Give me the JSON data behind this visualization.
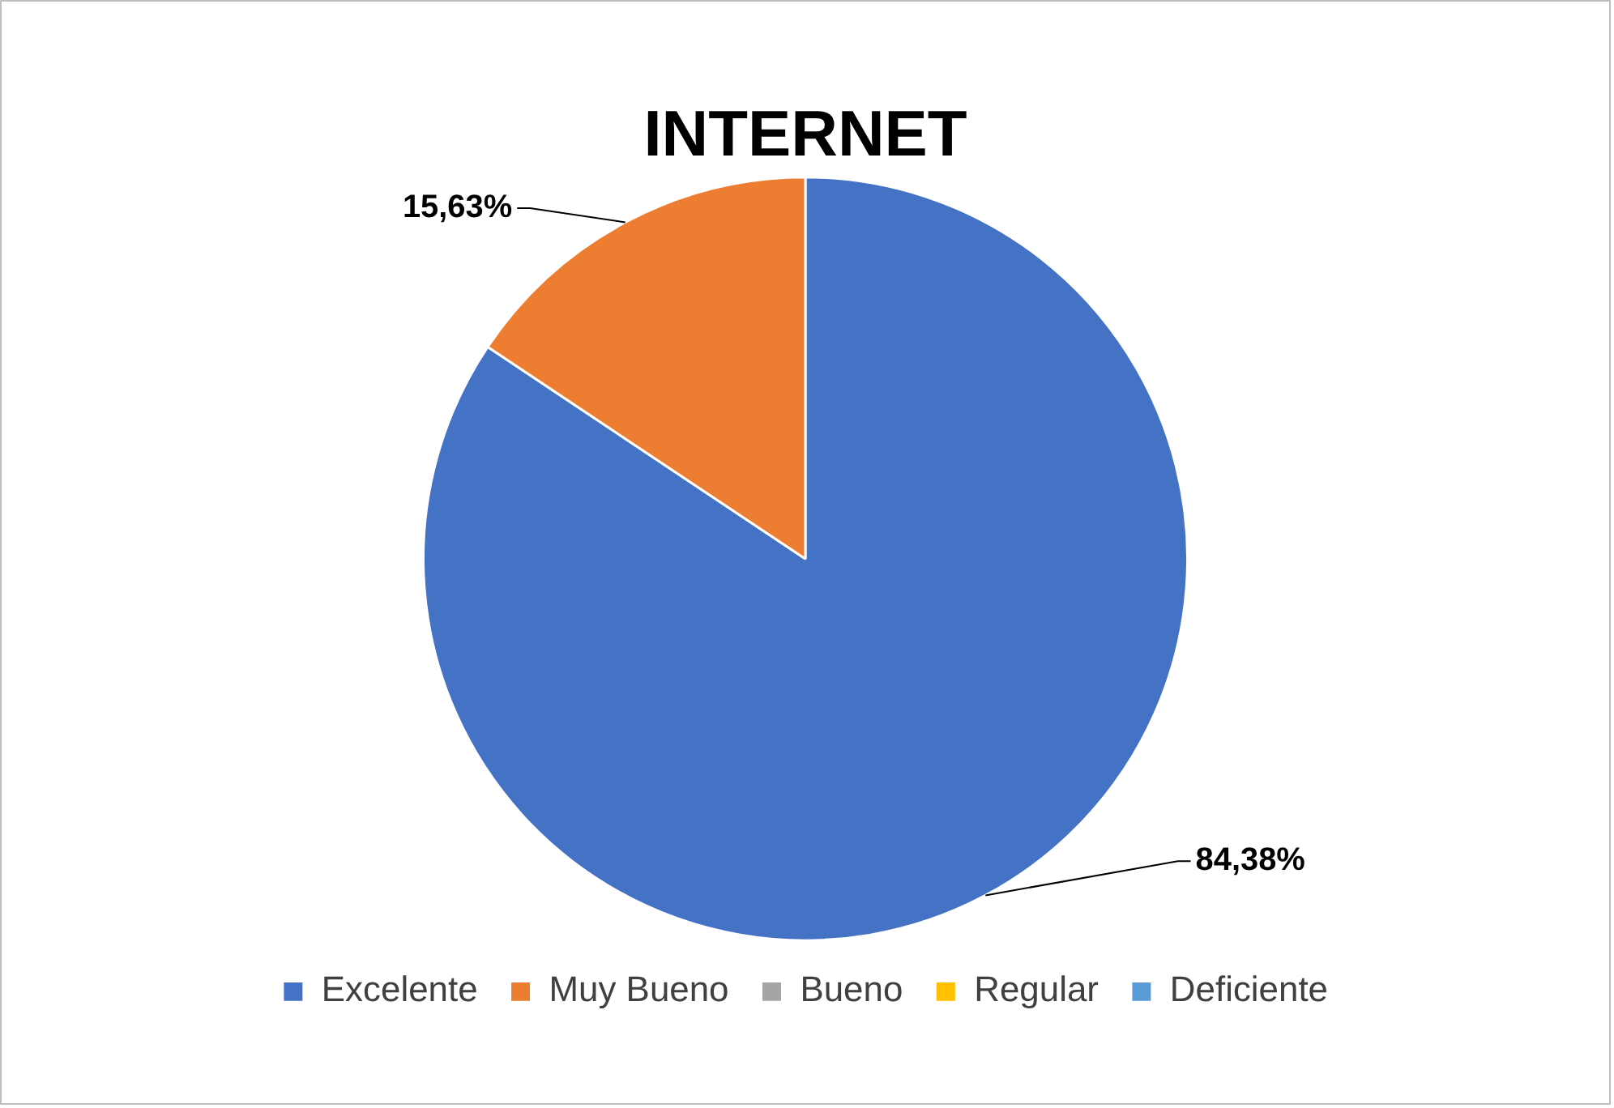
{
  "chart_data": {
    "type": "pie",
    "title": "INTERNET",
    "categories": [
      "Excelente",
      "Muy Bueno",
      "Bueno",
      "Regular",
      "Deficiente"
    ],
    "values": [
      84.38,
      15.63,
      0,
      0,
      0
    ],
    "colors": [
      "#4472c4",
      "#ed7d31",
      "#a5a5a5",
      "#ffc000",
      "#5b9bd5"
    ],
    "value_labels": [
      "84,38%",
      "15,63%",
      null,
      null,
      null
    ],
    "legend": "bottom"
  }
}
